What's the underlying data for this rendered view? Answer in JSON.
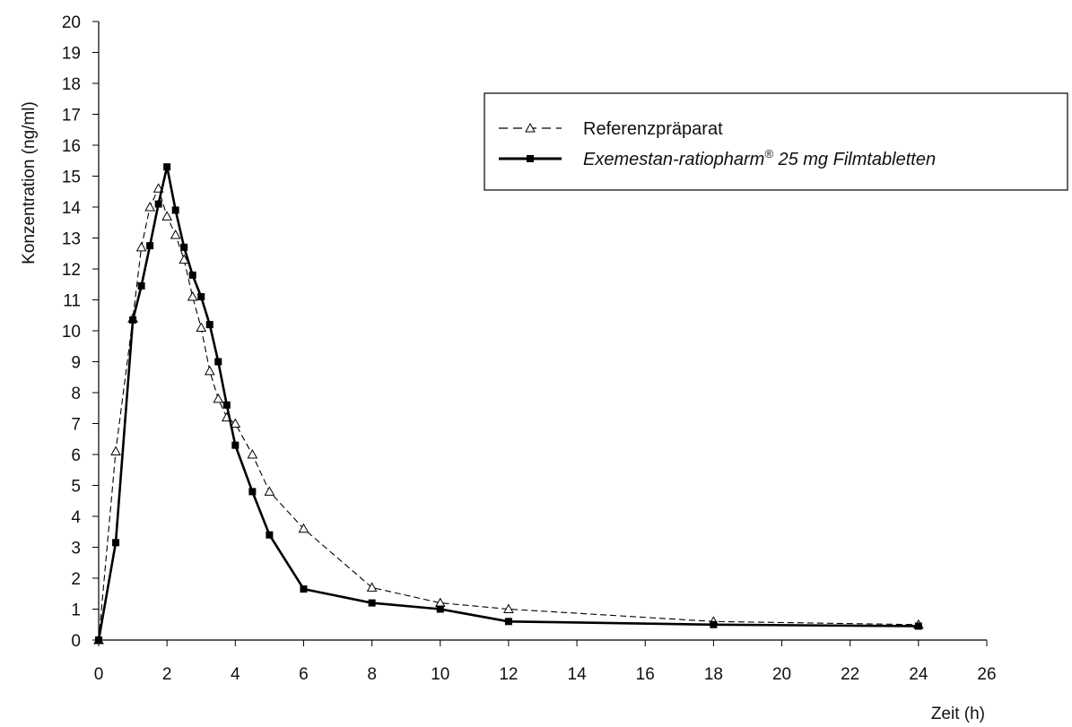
{
  "chart_data": {
    "type": "line",
    "xlabel": "Zeit (h)",
    "ylabel": "Konzentration (ng/ml)",
    "xlim": [
      0,
      26
    ],
    "ylim": [
      0,
      20
    ],
    "x_ticks": [
      0,
      2,
      4,
      6,
      8,
      10,
      12,
      14,
      16,
      18,
      20,
      22,
      24,
      26
    ],
    "y_ticks": [
      0,
      1,
      2,
      3,
      4,
      5,
      6,
      7,
      8,
      9,
      10,
      11,
      12,
      13,
      14,
      15,
      16,
      17,
      18,
      19,
      20
    ],
    "grid": false,
    "legend_position": "top-right",
    "series": [
      {
        "name": "Referenzpräparat",
        "style": "dashed",
        "marker": "open-triangle",
        "color": "#000000",
        "x": [
          0,
          0.5,
          1,
          1.25,
          1.5,
          1.75,
          2,
          2.25,
          2.5,
          2.75,
          3,
          3.25,
          3.5,
          3.75,
          4,
          4.5,
          5,
          6,
          8,
          10,
          12,
          18,
          24
        ],
        "y": [
          0,
          6.1,
          10.4,
          12.7,
          14.0,
          14.6,
          13.7,
          13.1,
          12.3,
          11.1,
          10.1,
          8.7,
          7.8,
          7.2,
          7.0,
          6.0,
          4.8,
          3.6,
          1.7,
          1.2,
          1.0,
          0.6,
          0.5
        ]
      },
      {
        "name": "Exemestan-ratiopharm® 25 mg Filmtabletten",
        "style": "solid",
        "marker": "filled-square",
        "color": "#000000",
        "x": [
          0,
          0.5,
          1,
          1.25,
          1.5,
          1.75,
          2,
          2.25,
          2.5,
          2.75,
          3,
          3.25,
          3.5,
          3.75,
          4,
          4.5,
          5,
          6,
          8,
          10,
          12,
          18,
          24
        ],
        "y": [
          0,
          3.15,
          10.35,
          11.45,
          12.75,
          14.1,
          15.3,
          13.9,
          12.7,
          11.8,
          11.1,
          10.2,
          9.0,
          7.6,
          6.3,
          4.8,
          3.4,
          1.65,
          1.2,
          1.0,
          0.6,
          0.5,
          0.45
        ]
      }
    ]
  },
  "legend": {
    "ref_label": "Referenzpräparat",
    "test_label_main": "Exemestan-ratiopharm",
    "test_label_reg": "®",
    "test_label_tail": " 25 mg Filmtabletten"
  }
}
